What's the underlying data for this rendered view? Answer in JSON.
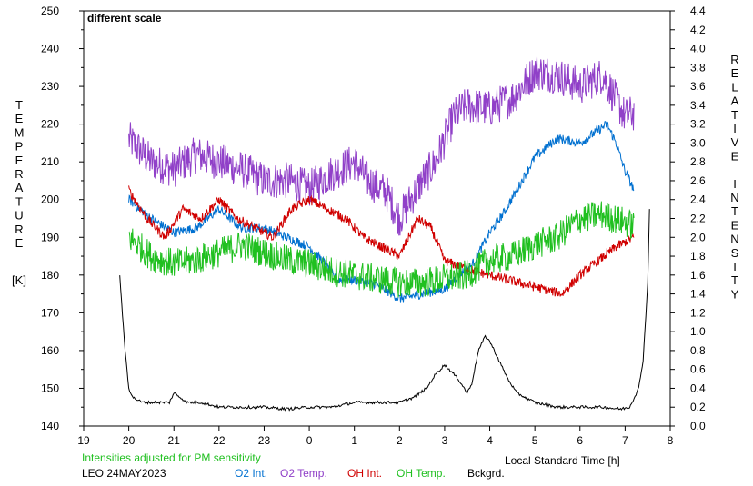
{
  "chart_data": {
    "type": "line",
    "annotation": "different scale",
    "station": "LEO 24MAY2023",
    "note": "Intensities adjusted for PM sensitivity",
    "xlabel": "Local Standard Time [h]",
    "ylabel_left_letters": [
      "T",
      "E",
      "M",
      "P",
      "E",
      "R",
      "A",
      "T",
      "U",
      "R",
      "E"
    ],
    "ylabel_left_unit": "[K]",
    "ylabel_right_letters": [
      "R",
      "E",
      "L",
      "A",
      "T",
      "I",
      "V",
      "E",
      "",
      "I",
      "N",
      "T",
      "E",
      "N",
      "S",
      "I",
      "T",
      "Y"
    ],
    "x_ticks": [
      "19",
      "20",
      "21",
      "22",
      "23",
      "0",
      "1",
      "2",
      "3",
      "4",
      "5",
      "6",
      "7",
      "8"
    ],
    "x_range": [
      19,
      32
    ],
    "y_left_ticks": [
      "250",
      "240",
      "230",
      "220",
      "210",
      "200",
      "190",
      "180",
      "170",
      "160",
      "150",
      "140"
    ],
    "y_left_range": [
      140,
      250
    ],
    "y_right_ticks": [
      "4.4",
      "4.2",
      "4.0",
      "3.8",
      "3.6",
      "3.4",
      "3.2",
      "3.0",
      "2.8",
      "2.6",
      "2.4",
      "2.2",
      "2.0",
      "1.8",
      "1.6",
      "1.4",
      "1.2",
      "1.0",
      "0.8",
      "0.6",
      "0.4",
      "0.2",
      "0.0"
    ],
    "y_right_range": [
      0,
      4.4
    ],
    "legend": [
      "O2 Int.",
      "O2 Temp.",
      "OH Int.",
      "OH Temp.",
      "Bckgrd."
    ],
    "colors": {
      "o2_int": "#0070d0",
      "o2_temp": "#9040c8",
      "oh_int": "#d00000",
      "oh_temp": "#20c020",
      "bckgrd": "#000000",
      "annotation": "#d00000",
      "note": "#20c020"
    },
    "series": [
      {
        "key": "o2_temp",
        "axis": "left",
        "noise": 5,
        "x": [
          20.0,
          20.5,
          21.0,
          21.5,
          22.0,
          22.5,
          23.0,
          23.5,
          24.0,
          24.5,
          25.0,
          25.3,
          25.7,
          26.0,
          26.5,
          26.8,
          27.2,
          27.5,
          28.0,
          28.5,
          29.0,
          29.5,
          30.0,
          30.5,
          31.0,
          31.2
        ],
        "y": [
          216,
          210,
          208,
          212,
          210,
          208,
          205,
          205,
          203,
          207,
          210,
          205,
          202,
          195,
          205,
          210,
          222,
          225,
          224,
          227,
          234,
          233,
          230,
          233,
          222,
          223
        ]
      },
      {
        "key": "o2_int",
        "axis": "right",
        "noise": 0.05,
        "x": [
          20.0,
          20.5,
          21.0,
          21.5,
          22.0,
          22.5,
          23.0,
          23.5,
          24.0,
          24.3,
          24.6,
          25.0,
          25.5,
          26.0,
          26.5,
          27.0,
          27.3,
          27.6,
          28.0,
          28.3,
          28.6,
          29.0,
          29.5,
          30.0,
          30.3,
          30.6,
          30.8,
          31.0,
          31.2
        ],
        "y": [
          2.4,
          2.2,
          2.05,
          2.1,
          2.3,
          2.1,
          2.1,
          2.0,
          1.9,
          1.75,
          1.55,
          1.55,
          1.5,
          1.35,
          1.4,
          1.45,
          1.6,
          1.7,
          2.05,
          2.25,
          2.5,
          2.85,
          3.05,
          3.0,
          3.1,
          3.2,
          3.0,
          2.7,
          2.5
        ]
      },
      {
        "key": "oh_int",
        "axis": "right",
        "noise": 0.05,
        "x": [
          20.0,
          20.4,
          20.8,
          21.2,
          21.6,
          22.0,
          22.4,
          22.8,
          23.2,
          23.6,
          24.0,
          24.4,
          24.8,
          25.2,
          25.6,
          26.0,
          26.4,
          26.7,
          27.0,
          27.3,
          27.6,
          28.0,
          28.4,
          28.8,
          29.2,
          29.6,
          30.0,
          30.4,
          30.8,
          31.2
        ],
        "y": [
          2.5,
          2.2,
          2.0,
          2.3,
          2.2,
          2.4,
          2.2,
          2.1,
          2.0,
          2.3,
          2.4,
          2.3,
          2.2,
          2.0,
          1.9,
          1.8,
          2.2,
          2.1,
          1.75,
          1.7,
          1.65,
          1.6,
          1.55,
          1.5,
          1.45,
          1.4,
          1.6,
          1.75,
          1.9,
          2.0
        ]
      },
      {
        "key": "oh_temp",
        "axis": "left",
        "noise": 4,
        "x": [
          20.0,
          20.5,
          21.0,
          21.5,
          22.0,
          22.5,
          23.0,
          23.5,
          24.0,
          24.5,
          25.0,
          25.5,
          26.0,
          26.5,
          27.0,
          27.5,
          28.0,
          28.5,
          29.0,
          29.5,
          30.0,
          30.5,
          31.0,
          31.2
        ],
        "y": [
          190,
          185,
          183,
          184,
          186,
          188,
          186,
          184,
          183,
          181,
          180,
          179,
          178,
          178,
          179,
          180,
          184,
          185,
          188,
          190,
          195,
          196,
          194,
          193
        ]
      },
      {
        "key": "bckgrd",
        "axis": "right",
        "noise": 0.015,
        "x": [
          19.8,
          19.9,
          20.0,
          20.1,
          20.3,
          20.6,
          20.9,
          21.0,
          21.3,
          21.6,
          22.0,
          22.5,
          23.0,
          23.5,
          24.0,
          24.5,
          25.0,
          25.5,
          26.0,
          26.3,
          26.6,
          26.8,
          27.0,
          27.3,
          27.5,
          27.6,
          27.75,
          27.9,
          28.0,
          28.2,
          28.4,
          28.6,
          28.8,
          29.0,
          29.5,
          30.0,
          30.5,
          30.9,
          31.1,
          31.3,
          31.4,
          31.5,
          31.55
        ],
        "y": [
          1.6,
          0.9,
          0.4,
          0.3,
          0.25,
          0.25,
          0.25,
          0.35,
          0.25,
          0.25,
          0.2,
          0.2,
          0.2,
          0.18,
          0.2,
          0.2,
          0.25,
          0.25,
          0.25,
          0.3,
          0.4,
          0.55,
          0.65,
          0.5,
          0.35,
          0.45,
          0.8,
          0.95,
          0.9,
          0.7,
          0.5,
          0.35,
          0.3,
          0.25,
          0.2,
          0.2,
          0.2,
          0.18,
          0.2,
          0.4,
          0.7,
          1.5,
          2.5
        ]
      }
    ]
  }
}
